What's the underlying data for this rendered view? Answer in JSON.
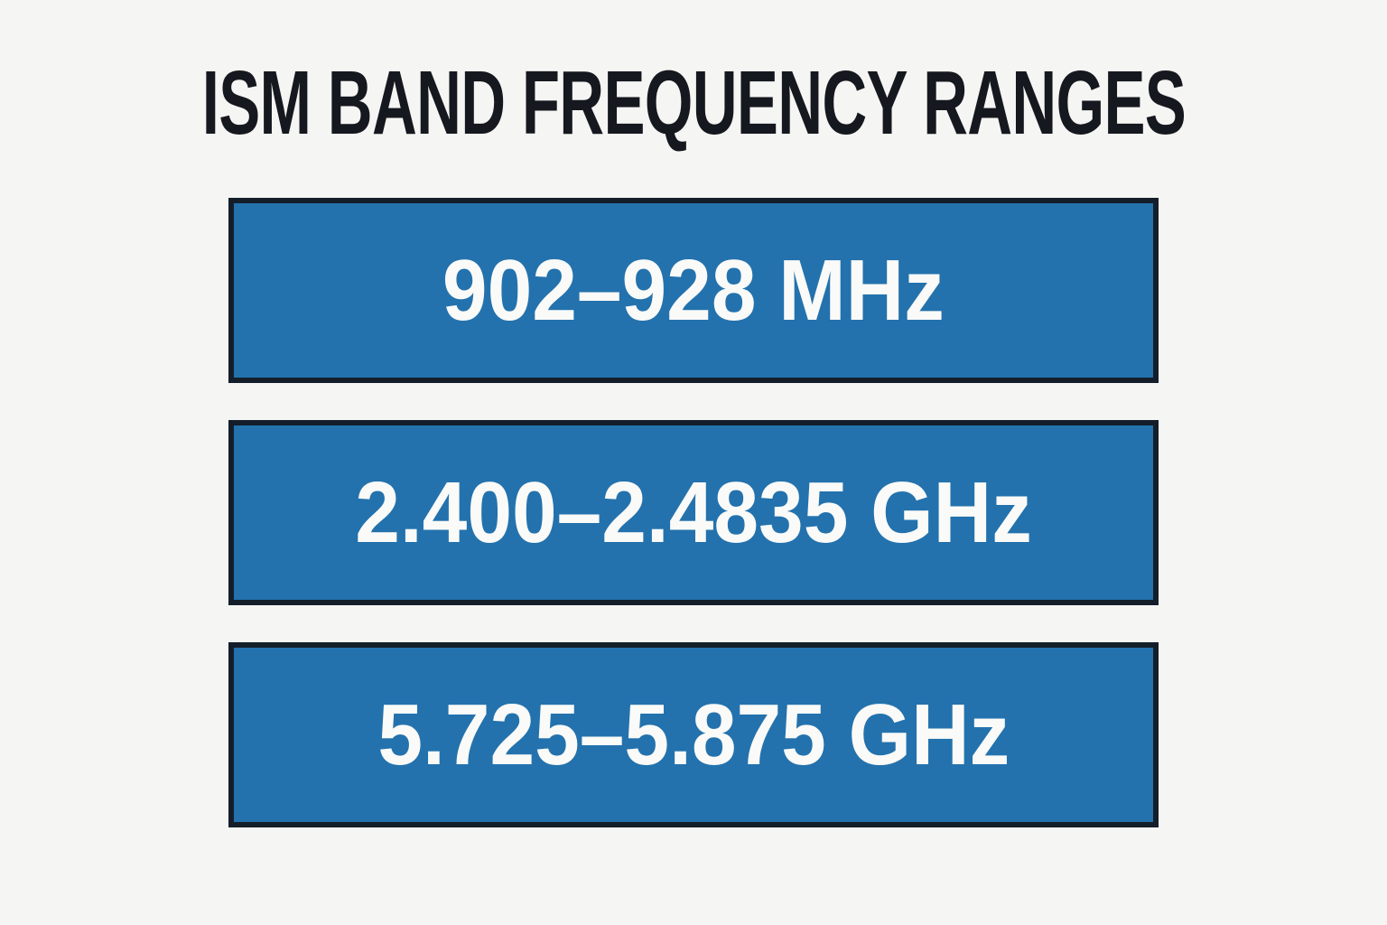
{
  "title": "ISM BAND FREQUENCY RANGES",
  "bands": [
    {
      "label": "902–928 MHz"
    },
    {
      "label": "2.400–2.4835 GHz"
    },
    {
      "label": "5.725–5.875 GHz"
    }
  ],
  "colors": {
    "background": "#f5f5f3",
    "bar_fill": "#2372ad",
    "bar_border": "#141e2a",
    "title_text": "#15181e",
    "bar_text": "#fafaf8"
  }
}
